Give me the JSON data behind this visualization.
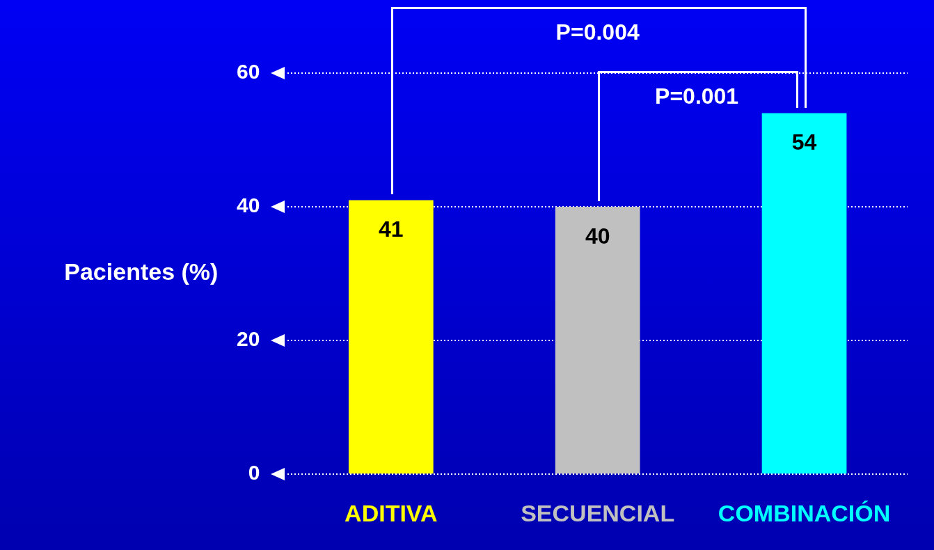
{
  "chart_data": {
    "type": "bar",
    "ylabel": "Pacientes (%)",
    "categories": [
      "ADITIVA",
      "SECUENCIAL",
      "COMBINACIÓN"
    ],
    "values": [
      41,
      40,
      54
    ],
    "colors": [
      "#ffff00",
      "#c0c0c0",
      "#00ffff"
    ],
    "ylim": [
      0,
      60
    ],
    "yticks": [
      0,
      20,
      40,
      60
    ],
    "grid": "y",
    "legend": false,
    "data_labels": true,
    "annotations": [
      "P=0.004",
      "P=0.001"
    ]
  }
}
